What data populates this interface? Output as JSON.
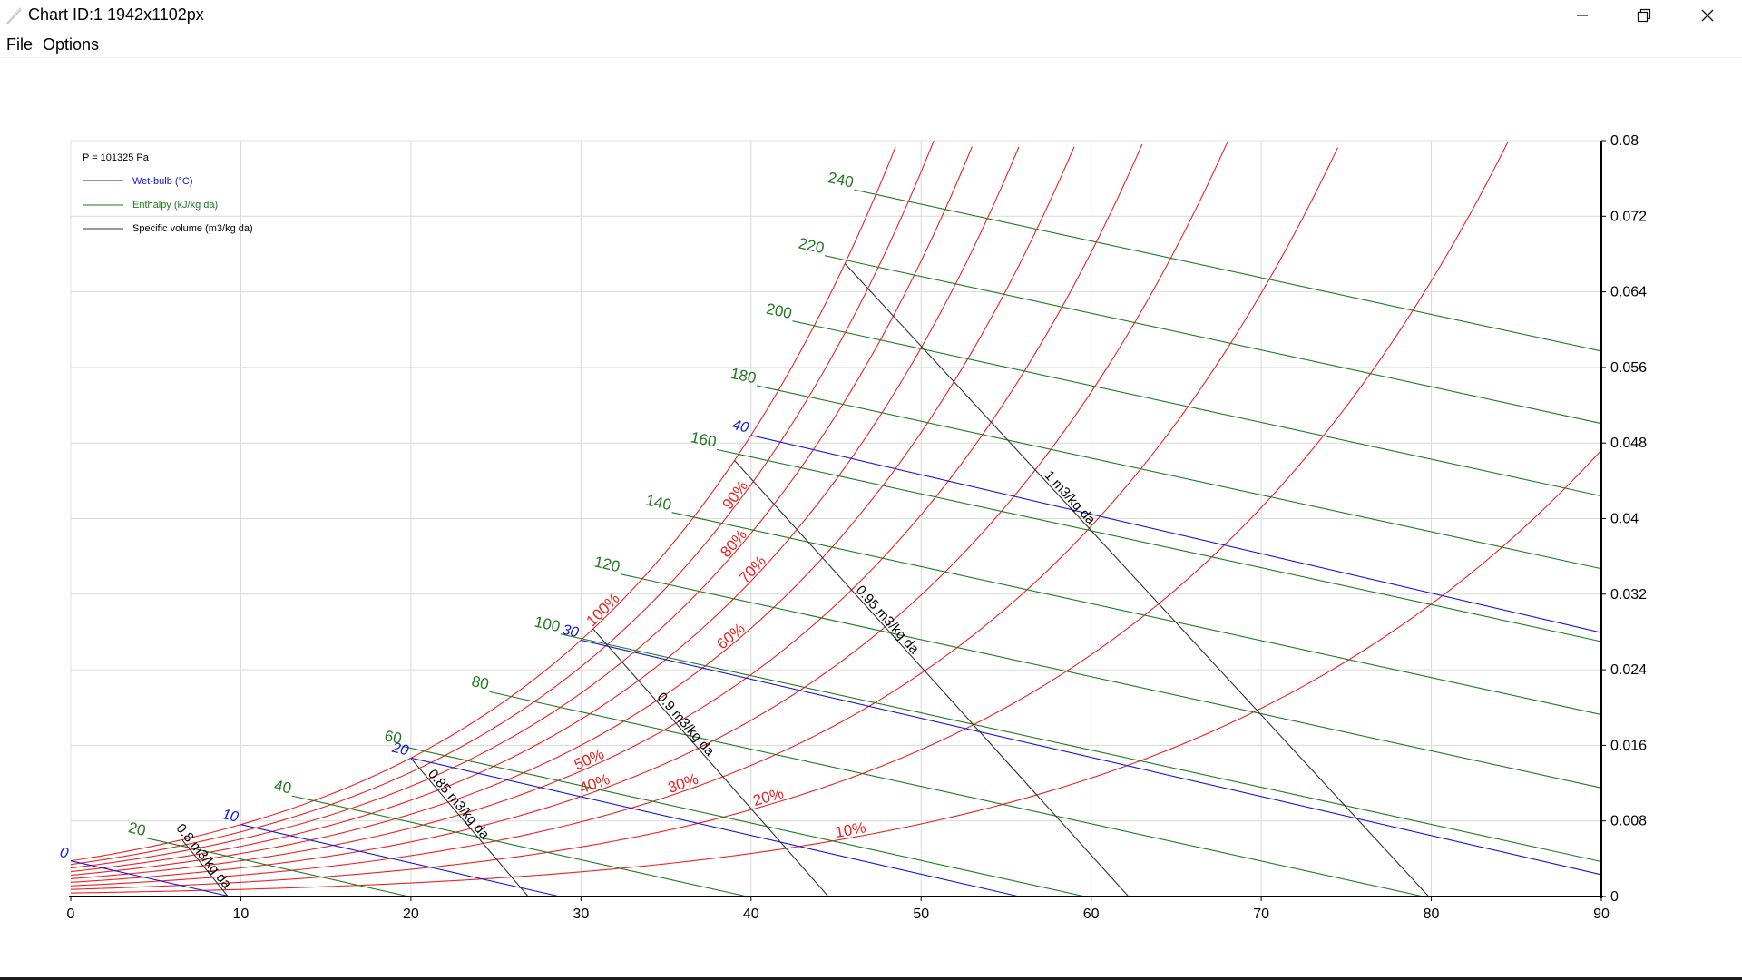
{
  "window": {
    "title": "Chart ID:1 1942x1102px"
  },
  "menu": {
    "file": "File",
    "options": "Options"
  },
  "colors": {
    "rh": "#ee2222",
    "wetbulb": "#1515e0",
    "enthalpy": "#1f7a1f",
    "volume": "#333333",
    "grid": "#d9d9d9",
    "axis": "#000000"
  },
  "chart_data": {
    "type": "psychrometric",
    "pressure_label": "P = 101325 Pa",
    "pressure_pa": 101325,
    "xlim": [
      0,
      90
    ],
    "ylim": [
      0,
      0.08
    ],
    "x_ticks": [
      "0",
      "10",
      "20",
      "30",
      "40",
      "50",
      "60",
      "70",
      "80",
      "90"
    ],
    "y_ticks": [
      "0",
      "0.008",
      "0.016",
      "0.024",
      "0.032",
      "0.04",
      "0.048",
      "0.056",
      "0.064",
      "0.072",
      "0.08"
    ],
    "grid": true,
    "legend": {
      "placement": "top-left",
      "entries": [
        {
          "label": "Wet-bulb (°C)",
          "color": "#1515e0"
        },
        {
          "label": "Enthalpy (kJ/kg da)",
          "color": "#1f7a1f"
        },
        {
          "label": "Specific volume (m3/kg da)",
          "color": "#333333"
        }
      ]
    },
    "relative_humidity": {
      "values": [
        10,
        20,
        30,
        40,
        50,
        60,
        70,
        80,
        90,
        100
      ],
      "labels": [
        {
          "rh": 100,
          "text": "100%",
          "t": 31.5
        },
        {
          "rh": 90,
          "text": "90%",
          "t": 39.3
        },
        {
          "rh": 80,
          "text": "80%",
          "t": 39.2
        },
        {
          "rh": 70,
          "text": "70%",
          "t": 40.3
        },
        {
          "rh": 60,
          "text": "60%",
          "t": 39.0
        },
        {
          "rh": 50,
          "text": "50%",
          "t": 30.6
        },
        {
          "rh": 40,
          "text": "40%",
          "t": 30.9
        },
        {
          "rh": 30,
          "text": "30%",
          "t": 36.1
        },
        {
          "rh": 20,
          "text": "20%",
          "t": 41.1
        },
        {
          "rh": 10,
          "text": "10%",
          "t": 45.9
        }
      ]
    },
    "wet_bulb": [
      {
        "value": 0,
        "label": "0"
      },
      {
        "value": 10,
        "label": "10"
      },
      {
        "value": 20,
        "label": "20"
      },
      {
        "value": 30,
        "label": "30"
      },
      {
        "value": 40,
        "label": "40"
      }
    ],
    "enthalpy": [
      {
        "value": 20,
        "label": "20"
      },
      {
        "value": 40,
        "label": "40"
      },
      {
        "value": 60,
        "label": "60"
      },
      {
        "value": 80,
        "label": "80"
      },
      {
        "value": 100,
        "label": "100"
      },
      {
        "value": 120,
        "label": "120"
      },
      {
        "value": 140,
        "label": "140"
      },
      {
        "value": 160,
        "label": "160"
      },
      {
        "value": 180,
        "label": "180"
      },
      {
        "value": 200,
        "label": "200"
      },
      {
        "value": 220,
        "label": "220"
      },
      {
        "value": 240,
        "label": "240"
      }
    ],
    "specific_volume": [
      {
        "value": 0.8,
        "label": "0.8 m3/kg da"
      },
      {
        "value": 0.85,
        "label": "0.85 m3/kg da"
      },
      {
        "value": 0.9,
        "label": "0.9 m3/kg da"
      },
      {
        "value": 0.95,
        "label": "0.95 m3/kg da"
      },
      {
        "value": 1.0,
        "label": "1 m3/kg da"
      }
    ]
  }
}
